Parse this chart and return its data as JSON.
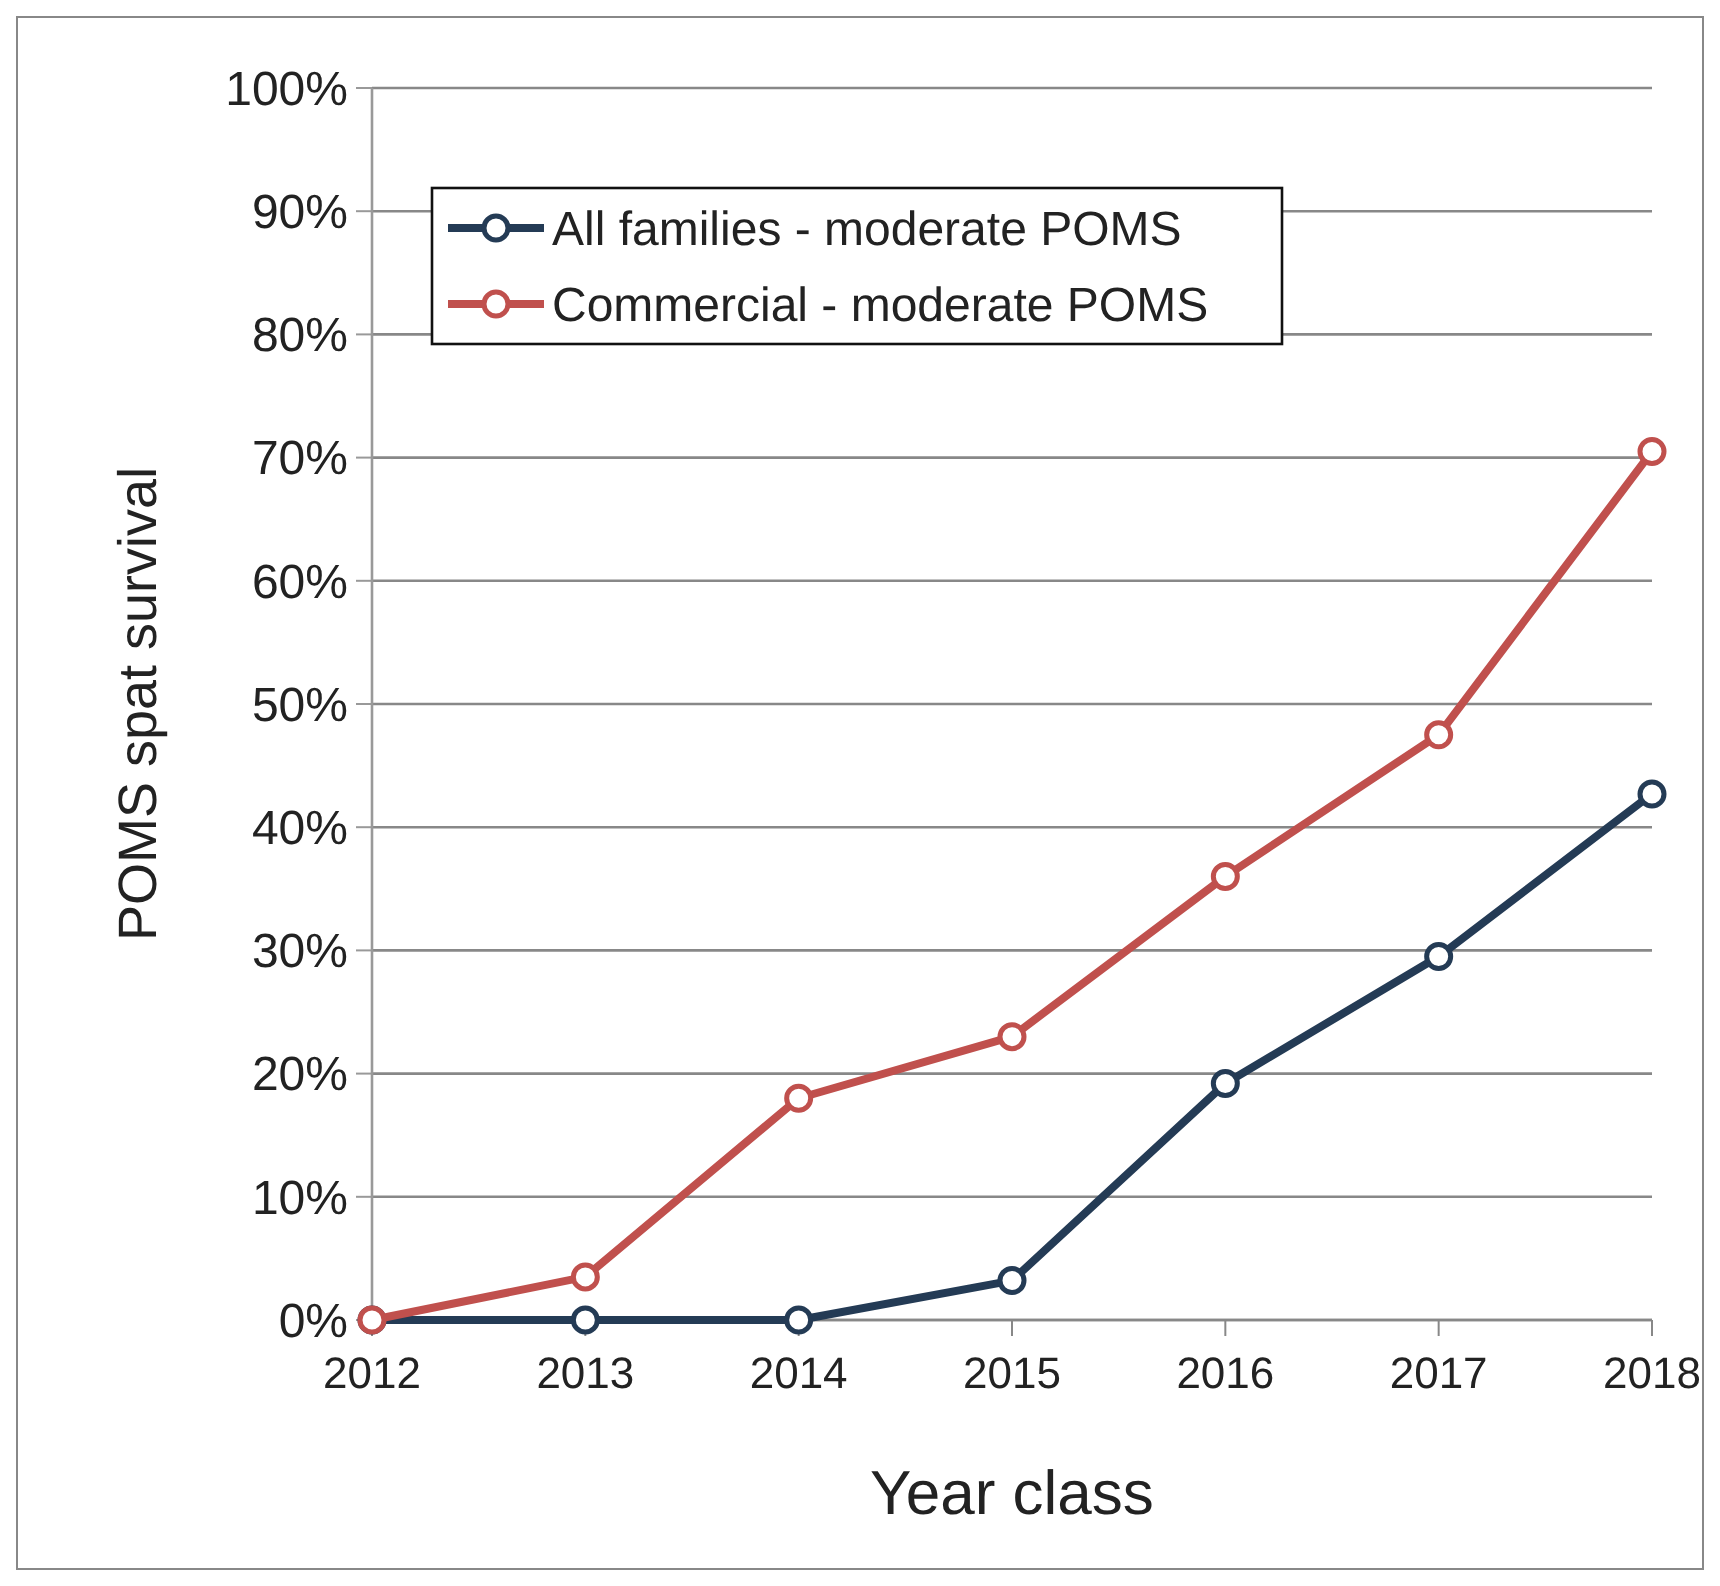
{
  "chart_data": {
    "type": "line",
    "xlabel": "Year class",
    "ylabel": "POMS spat survival",
    "categories": [
      "2012",
      "2013",
      "2014",
      "2015",
      "2016",
      "2017",
      "2018"
    ],
    "series": [
      {
        "name": "All families - moderate POMS",
        "color": "#243b55",
        "values": [
          0,
          0,
          0,
          3.2,
          19.2,
          29.5,
          42.7
        ]
      },
      {
        "name": "Commercial - moderate POMS",
        "color": "#c0504d",
        "values": [
          0,
          3.5,
          18,
          23,
          36,
          47.5,
          70.5
        ]
      }
    ],
    "ylim": [
      0,
      100
    ],
    "yticks": [
      {
        "value": 0,
        "label": "0%"
      },
      {
        "value": 10,
        "label": "10%"
      },
      {
        "value": 20,
        "label": "20%"
      },
      {
        "value": 30,
        "label": "30%"
      },
      {
        "value": 40,
        "label": "40%"
      },
      {
        "value": 50,
        "label": "50%"
      },
      {
        "value": 60,
        "label": "60%"
      },
      {
        "value": 70,
        "label": "70%"
      },
      {
        "value": 80,
        "label": "80%"
      },
      {
        "value": 90,
        "label": "90%"
      },
      {
        "value": 100,
        "label": "100%"
      }
    ],
    "grid": "y",
    "legend": "top left",
    "marker": "circle",
    "line_style": "solid"
  }
}
